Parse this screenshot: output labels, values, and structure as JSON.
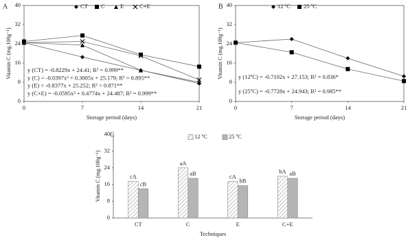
{
  "chart_data": [
    {
      "type": "scatter",
      "panel": "A",
      "x_label": "Storage period (days)",
      "y_label": "Vitamin C (mg.100g⁻¹)",
      "x": [
        0,
        7,
        14,
        21
      ],
      "xlim": [
        0,
        21
      ],
      "xticks": [
        0,
        7,
        14,
        21
      ],
      "ylim": [
        0,
        40
      ],
      "yticks": [
        0,
        8,
        16,
        24,
        32,
        40
      ],
      "series": [
        {
          "name": "CT",
          "color": "#000000",
          "marker": "diamond",
          "values": [
            24.5,
            18.5,
            13,
            7.5
          ]
        },
        {
          "name": "C",
          "color": "#000000",
          "marker": "square",
          "values": [
            25,
            27.5,
            19.5,
            14.5
          ]
        },
        {
          "name": "E",
          "color": "#000000",
          "marker": "triangle",
          "values": [
            24.5,
            23.5,
            13,
            8
          ]
        },
        {
          "name": "C+E",
          "color": "#000000",
          "marker": "x",
          "values": [
            24.5,
            25,
            19,
            9
          ]
        }
      ],
      "annotations": [
        "y (CT) = -0.8229x + 24.41; R² = 0.999**",
        "y (C) = -0.0397x² + 0.3005x + 25.179; R² = 0.895**",
        "y (E) = -0.8377x + 25.252; R² = 0.871**",
        "y (C+E) = -0.0595x² + 0.4774x + 24.487; R² = 0.999**"
      ]
    },
    {
      "type": "scatter",
      "panel": "B",
      "x_label": "Storage period (days)",
      "y_label": "Vitamin C (mg.100g⁻¹)",
      "x": [
        0,
        7,
        14,
        21
      ],
      "xlim": [
        0,
        21
      ],
      "xticks": [
        0,
        7,
        14,
        21
      ],
      "ylim": [
        0,
        40
      ],
      "yticks": [
        0,
        8,
        16,
        24,
        32,
        40
      ],
      "series": [
        {
          "name": "12 ºC",
          "color": "#000000",
          "marker": "diamond",
          "values": [
            24.5,
            26,
            18,
            10.5
          ]
        },
        {
          "name": "25 ºC",
          "color": "#000000",
          "marker": "square",
          "values": [
            24.5,
            20.5,
            13.5,
            8.5
          ]
        }
      ],
      "annotations": [
        "y (12ºC) = -0.7102x + 27.153; R² = 0.836*",
        "y (25ºC) = -0.7728x + 24.943; R² = 0.985**"
      ]
    },
    {
      "type": "bar",
      "panel": "C",
      "x_label": "Techniques",
      "y_label": "Vitamin C (mg.100g⁻¹)",
      "categories": [
        "CT",
        "C",
        "E",
        "C+E"
      ],
      "ylim": [
        0,
        40
      ],
      "yticks": [
        0,
        8,
        16,
        24,
        32,
        40
      ],
      "series": [
        {
          "name": "12 ºC",
          "color": "#ffffff",
          "hatch": true,
          "values": [
            17.5,
            24,
            17.5,
            20
          ],
          "letters": [
            "cA",
            "aA",
            "cA",
            "bA"
          ]
        },
        {
          "name": "25 ºC",
          "color": "#b5b5b5",
          "hatch": false,
          "values": [
            14,
            19,
            15.5,
            19
          ],
          "letters": [
            "cB",
            "aB",
            "bB",
            "aB"
          ]
        }
      ]
    }
  ]
}
